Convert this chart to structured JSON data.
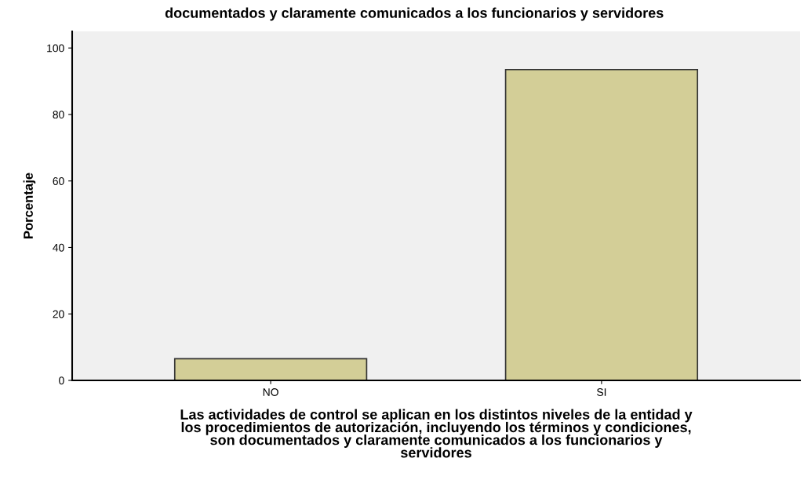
{
  "chart_data": {
    "type": "bar",
    "title": "documentados y claramente comunicados a los funcionarios y servidores",
    "xlabel": "Las actividades de control se aplican en los distintos niveles de la entidad y\nlos procedimientos de autorización, incluyendo los términos y condiciones,\nson documentados y claramente comunicados a los funcionarios y\nservidores",
    "ylabel": "Porcentaje",
    "categories": [
      "NO",
      "SI"
    ],
    "values": [
      6.5,
      93.5
    ],
    "color": "#d3ce97",
    "ylim": [
      0,
      105
    ],
    "yticks": [
      0,
      20,
      40,
      60,
      80,
      100
    ],
    "grid": false
  }
}
